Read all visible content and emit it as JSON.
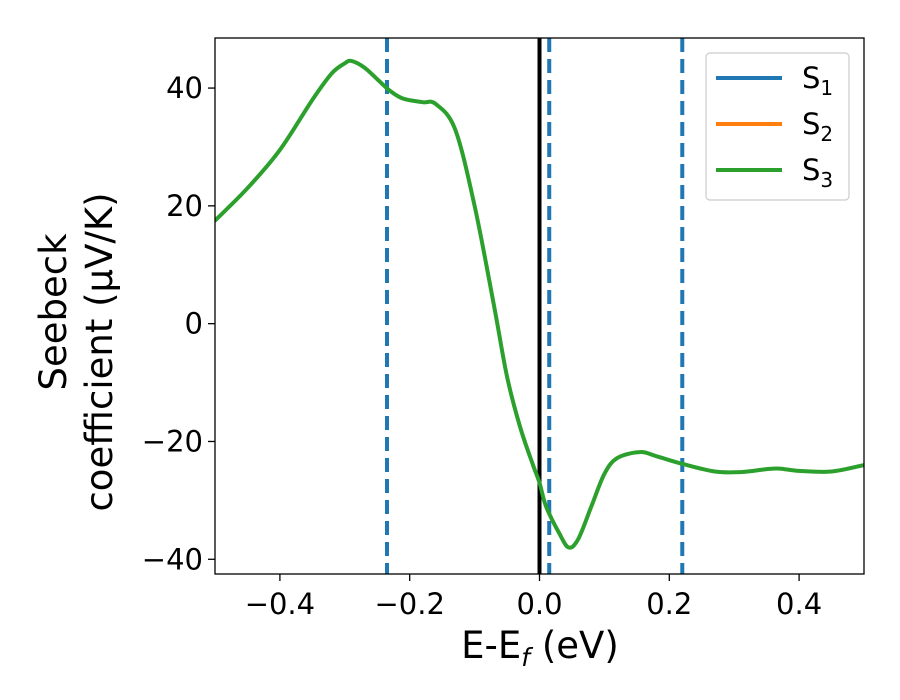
{
  "chart_data": {
    "type": "line",
    "title": "",
    "xlabel": {
      "base": "E-E",
      "sub": "f",
      "tail": " (eV)"
    },
    "ylabel": {
      "line1": "Seebeck",
      "line2": "coefficient  (μV/K)"
    },
    "xlim": [
      -0.5,
      0.5
    ],
    "ylim": [
      -42.5,
      48.5
    ],
    "xticks": [
      -0.4,
      -0.2,
      0.0,
      0.2,
      0.4
    ],
    "xtick_labels": [
      "−0.4",
      "−0.2",
      "0.0",
      "0.2",
      "0.4"
    ],
    "yticks": [
      -40,
      -20,
      0,
      20,
      40
    ],
    "ytick_labels": [
      "−40",
      "−20",
      "0",
      "20",
      "40"
    ],
    "grid": false,
    "legend_position": "top-right",
    "series": [
      {
        "name": "S",
        "sub": "1",
        "color": "#1f77b4"
      },
      {
        "name": "S",
        "sub": "2",
        "color": "#ff7f0e"
      },
      {
        "name": "S",
        "sub": "3",
        "color": "#2ca02c"
      }
    ],
    "curve_color": "#2ca02c",
    "x": [
      -0.5,
      -0.45,
      -0.4,
      -0.35,
      -0.32,
      -0.3,
      -0.29,
      -0.27,
      -0.25,
      -0.23,
      -0.21,
      -0.18,
      -0.16,
      -0.13,
      -0.1,
      -0.07,
      -0.05,
      -0.03,
      -0.01,
      0.0,
      0.01,
      0.03,
      0.045,
      0.06,
      0.08,
      0.1,
      0.12,
      0.155,
      0.18,
      0.22,
      0.27,
      0.31,
      0.35,
      0.37,
      0.4,
      0.45,
      0.5
    ],
    "y": [
      17.5,
      23,
      29.5,
      38,
      42.5,
      44.2,
      44.6,
      43.5,
      41.5,
      39.5,
      38.2,
      37.6,
      37.3,
      33,
      20,
      3,
      -9,
      -17.5,
      -24,
      -27,
      -31,
      -35.5,
      -38,
      -36.5,
      -31,
      -25.5,
      -22.8,
      -21.8,
      -22.5,
      -23.8,
      -25.1,
      -25.2,
      -24.7,
      -24.6,
      -25,
      -25.1,
      -24
    ],
    "vertical_lines": [
      {
        "x": 0.0,
        "color": "#000000",
        "style": "solid"
      },
      {
        "x": -0.235,
        "color": "#1f77b4",
        "style": "dashed"
      },
      {
        "x": 0.015,
        "color": "#1f77b4",
        "style": "dashed"
      },
      {
        "x": 0.22,
        "color": "#1f77b4",
        "style": "dashed"
      }
    ]
  }
}
